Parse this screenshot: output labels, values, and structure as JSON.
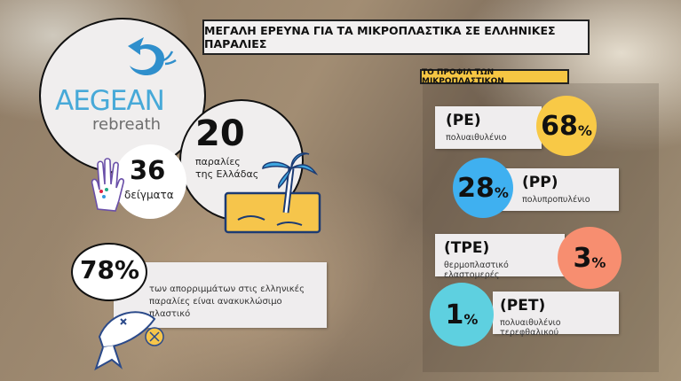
{
  "title": "ΜΕΓΑΛΗ ΕΡΕΥΝΑ ΓΙΑ ΤΑ ΜΙΚΡΟΠΛΑΣΤΙΚΑ ΣΕ ΕΛΛΗΝΙΚΕΣ ΠΑΡΑΛΙΕΣ",
  "logo": {
    "name": "AEGEAN",
    "sub": "rebreath",
    "color": "#3aa6d8"
  },
  "stats": {
    "beaches": {
      "value": "20",
      "line1": "παραλίες",
      "line2": "της Ελλάδας",
      "icon": "palm-beach-icon"
    },
    "samples": {
      "value": "36",
      "label": "δείγματα",
      "icon": "hand-icon"
    },
    "recyclable": {
      "value": "78%",
      "text": "των απορριμμάτων στις ελληνικές παραλίες είναι ανακυκλώσιμο πλαστικό",
      "icon": "dead-fish-icon"
    }
  },
  "profile": {
    "label": "ΤΟ ΠΡΟΦΙΛ ΤΩΝ ΜΙΚΡΟΠΛΑΣΤΙΚΩΝ",
    "items": [
      {
        "code": "(PE)",
        "name": "πολυαιθυλένιο",
        "value": "68",
        "unit": "%",
        "color": "#f8c946"
      },
      {
        "code": "(PP)",
        "name": "πολυπροπυλένιο",
        "value": "28",
        "unit": "%",
        "color": "#3fb0f0"
      },
      {
        "code": "(TPE)",
        "name": "θερμοπλαστικό ελαστομερές",
        "value": "3",
        "unit": "%",
        "color": "#f78e70"
      },
      {
        "code": "(PET)",
        "name": "πολυαιθυλένιο τερεφθαλικού",
        "value": "1",
        "unit": "%",
        "color": "#5ed0e0"
      }
    ]
  }
}
